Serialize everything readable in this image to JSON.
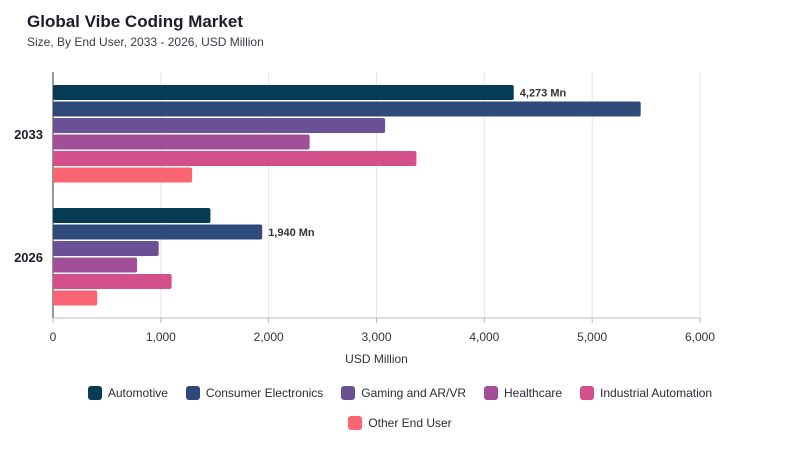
{
  "header": {
    "title": "Global Vibe Coding Market",
    "subtitle": "Size, By End User, 2033 - 2026, USD Million"
  },
  "chart_data": {
    "type": "bar",
    "orientation": "horizontal",
    "categories": [
      "2033",
      "2026"
    ],
    "series": [
      {
        "name": "Automotive",
        "color": "#063d54",
        "values": [
          4273,
          1460
        ]
      },
      {
        "name": "Consumer Electronics",
        "color": "#2e4a7b",
        "values": [
          5450,
          1940
        ]
      },
      {
        "name": "Gaming and AR/VR",
        "color": "#6a5196",
        "values": [
          3080,
          980
        ]
      },
      {
        "name": "Healthcare",
        "color": "#a04f98",
        "values": [
          2380,
          780
        ]
      },
      {
        "name": "Industrial Automation",
        "color": "#d3508a",
        "values": [
          3370,
          1100
        ]
      },
      {
        "name": "Other End User",
        "color": "#fb6473",
        "values": [
          1290,
          410
        ]
      }
    ],
    "data_labels": [
      {
        "category": "2033",
        "series": "Automotive",
        "text": "4,273 Mn"
      },
      {
        "category": "2026",
        "series": "Consumer Electronics",
        "text": "1,940 Mn"
      }
    ],
    "xlabel": "USD Million",
    "xlim": [
      0,
      6000
    ],
    "xticks": [
      0,
      1000,
      2000,
      3000,
      4000,
      5000,
      6000
    ],
    "xtick_labels": [
      "0",
      "1,000",
      "2,000",
      "3,000",
      "4,000",
      "5,000",
      "6,000"
    ],
    "grid": true,
    "legend_position": "bottom"
  }
}
